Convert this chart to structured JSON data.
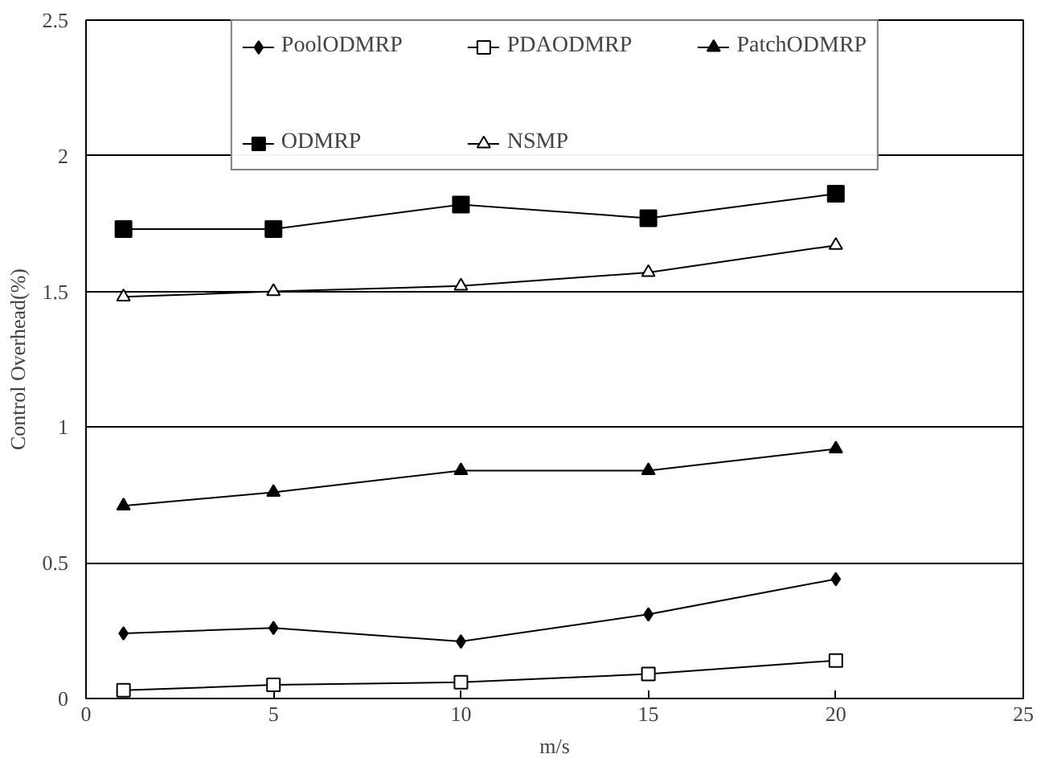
{
  "chart_data": {
    "type": "line",
    "xlabel": "m/s",
    "ylabel": "Control Overhead(%)",
    "x": [
      1,
      5,
      10,
      15,
      20
    ],
    "series": [
      {
        "name": "PoolODMRP",
        "color": "#000000",
        "marker": "diamond",
        "values": [
          0.24,
          0.26,
          0.21,
          0.31,
          0.44
        ]
      },
      {
        "name": "PDAODMRP",
        "color": "#000000",
        "marker": "square_open",
        "values": [
          0.03,
          0.05,
          0.06,
          0.09,
          0.14
        ]
      },
      {
        "name": "PatchODMRP",
        "color": "#000000",
        "marker": "triangle",
        "values": [
          0.71,
          0.76,
          0.84,
          0.84,
          0.92
        ]
      },
      {
        "name": "ODMRP",
        "color": "#000000",
        "marker": "square",
        "values": [
          1.73,
          1.73,
          1.82,
          1.77,
          1.86
        ]
      },
      {
        "name": "NSMP",
        "color": "#000000",
        "marker": "triangle_open",
        "values": [
          1.48,
          1.5,
          1.52,
          1.57,
          1.67
        ]
      }
    ],
    "xlim": [
      0,
      25
    ],
    "xticks": [
      0,
      5,
      10,
      15,
      20,
      25
    ],
    "ylim": [
      0,
      2.5
    ],
    "yticks": [
      0,
      0.5,
      1,
      1.5,
      2,
      2.5
    ],
    "grid": "y",
    "legend": "top"
  }
}
